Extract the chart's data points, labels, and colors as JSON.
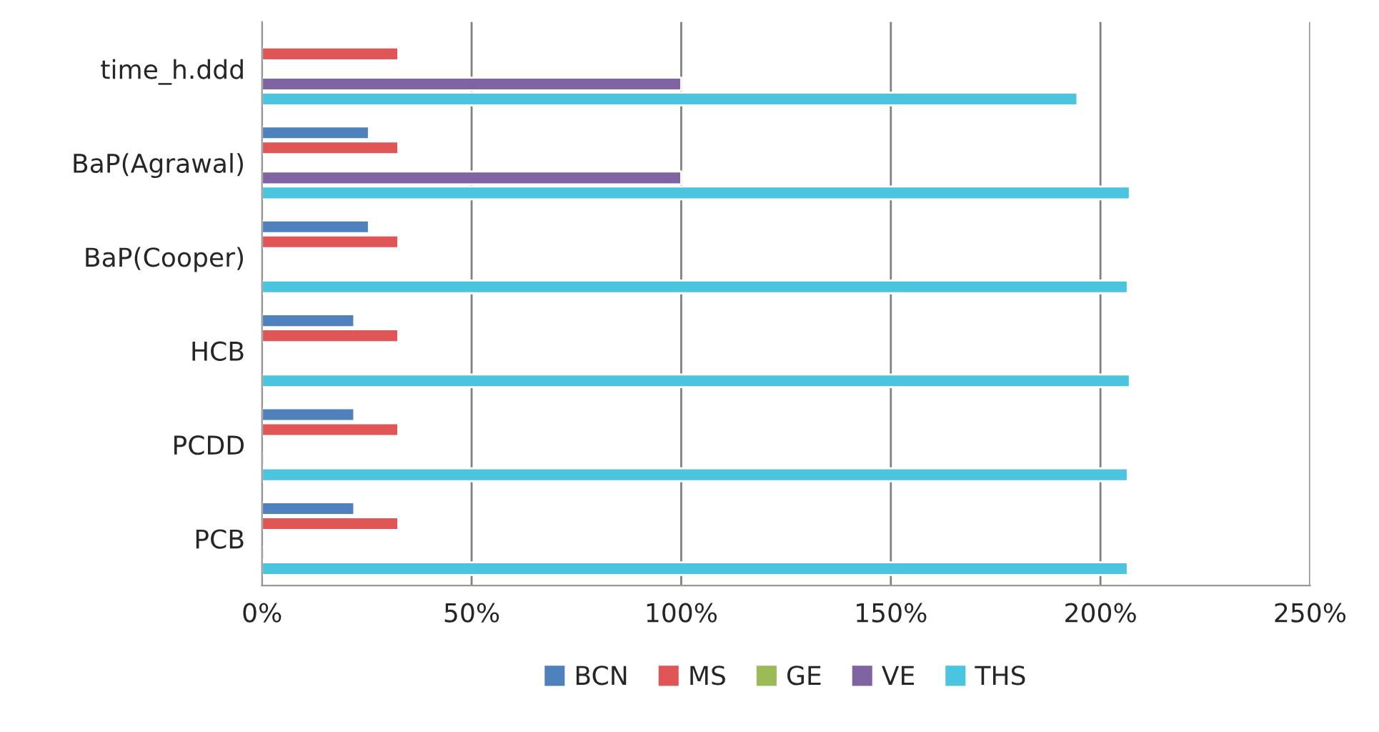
{
  "chart_data": {
    "type": "bar",
    "orientation": "horizontal",
    "categories": [
      "time_h.ddd",
      "BaP(Agrawal)",
      "BaP(Cooper)",
      "HCB",
      "PCDD",
      "PCB"
    ],
    "series": [
      {
        "name": "BCN",
        "color": "#4f81bd",
        "values": [
          null,
          25.5,
          25.5,
          22,
          22,
          22
        ]
      },
      {
        "name": "MS",
        "color": "#e05555",
        "values": [
          32.5,
          32.5,
          32.5,
          32.5,
          32.5,
          32.5
        ]
      },
      {
        "name": "GE",
        "color": "#9bbb59",
        "values": [
          null,
          null,
          null,
          null,
          null,
          null
        ]
      },
      {
        "name": "VE",
        "color": "#8064a2",
        "values": [
          100,
          100,
          null,
          null,
          0.5,
          0.5
        ]
      },
      {
        "name": "THS",
        "color": "#4bc4e0",
        "values": [
          194.5,
          207,
          206.5,
          207,
          206.5,
          206.5
        ]
      }
    ],
    "xlim": [
      0,
      250
    ],
    "xticks": [
      {
        "value": 0,
        "label": "0%"
      },
      {
        "value": 50,
        "label": "50%"
      },
      {
        "value": 100,
        "label": "100%"
      },
      {
        "value": 150,
        "label": "150%"
      },
      {
        "value": 200,
        "label": "200%"
      },
      {
        "value": 250,
        "label": "250%"
      }
    ],
    "grid": "x",
    "legend": "bottom"
  }
}
